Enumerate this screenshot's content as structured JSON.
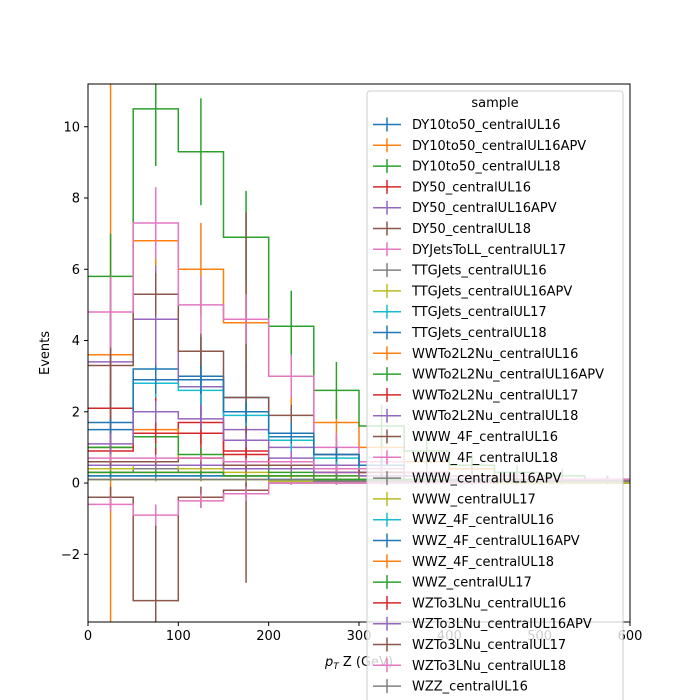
{
  "chart_data": {
    "type": "step",
    "title": "",
    "xlabel_main": "p",
    "xlabel_sub": "T",
    "xlabel_rest": " Z (GeV)",
    "ylabel": "Events",
    "xlim": [
      0,
      600
    ],
    "ylim": [
      -3.9,
      11.2
    ],
    "xticks": [
      "0",
      "100",
      "200",
      "300",
      "400",
      "500",
      "600"
    ],
    "yticks": [
      "−2",
      "0",
      "2",
      "4",
      "6",
      "8",
      "10"
    ],
    "ytick_values": [
      -2,
      0,
      2,
      4,
      6,
      8,
      10
    ],
    "xtick_values": [
      0,
      100,
      200,
      300,
      400,
      500,
      600
    ],
    "bin_edges": [
      0,
      50,
      100,
      150,
      200,
      250,
      300,
      350,
      400,
      450,
      500,
      550,
      600
    ],
    "legend_title": "sample",
    "legend_position": "upper-right",
    "series": [
      {
        "name": "DY10to50_centralUL16",
        "color": "#1f77b4",
        "values": [
          1.7,
          3.2,
          3.0,
          2.4,
          1.3,
          0.8,
          0.4,
          0.3,
          0.2,
          0.1,
          0.1,
          0.1
        ],
        "errors": [
          0.9,
          1.3,
          1.1,
          1.0,
          0.7,
          0.5,
          0.3,
          0.2,
          0.2,
          0.1,
          0.1,
          0.1
        ]
      },
      {
        "name": "DY10to50_centralUL16APV",
        "color": "#ff7f0e",
        "values": [
          3.6,
          6.8,
          6.0,
          4.5,
          3.0,
          1.7,
          1.0,
          0.6,
          0.4,
          0.2,
          0.1,
          0.1
        ],
        "errors": [
          7.6,
          1.5,
          1.3,
          1.1,
          0.8,
          0.6,
          0.4,
          0.3,
          0.2,
          0.2,
          0.1,
          0.1
        ]
      },
      {
        "name": "DY10to50_centralUL18",
        "color": "#2ca02c",
        "values": [
          5.8,
          10.5,
          9.3,
          6.9,
          4.4,
          2.6,
          1.6,
          0.9,
          0.5,
          0.3,
          0.2,
          0.1
        ],
        "errors": [
          1.2,
          1.6,
          1.5,
          1.3,
          1.0,
          0.8,
          0.6,
          0.4,
          0.3,
          0.2,
          0.2,
          0.1
        ]
      },
      {
        "name": "DY50_centralUL16",
        "color": "#d62728",
        "values": [
          2.1,
          1.4,
          1.7,
          0.9,
          0.6,
          0.4,
          0.3,
          0.2,
          0.1,
          0.1,
          0.1,
          0.1
        ],
        "errors": [
          1.5,
          1.0,
          1.0,
          0.6,
          0.4,
          0.3,
          0.2,
          0.2,
          0.1,
          0.1,
          0.1,
          0.1
        ]
      },
      {
        "name": "DY50_centralUL16APV",
        "color": "#9467bd",
        "values": [
          3.4,
          4.6,
          2.7,
          1.5,
          1.0,
          0.5,
          0.3,
          0.2,
          0.1,
          0.1,
          0.1,
          0.1
        ],
        "errors": [
          1.3,
          1.5,
          1.1,
          0.8,
          0.6,
          0.4,
          0.3,
          0.2,
          0.1,
          0.1,
          0.1,
          0.1
        ]
      },
      {
        "name": "DY50_centralUL18",
        "color": "#8c564b",
        "values": [
          3.3,
          5.3,
          3.7,
          2.4,
          1.9,
          0.8,
          0.5,
          0.3,
          0.2,
          0.1,
          0.1,
          0.1
        ],
        "errors": [
          1.6,
          0.6,
          0.5,
          5.2,
          0.3,
          0.3,
          0.2,
          0.2,
          0.1,
          0.1,
          0.1,
          0.1
        ]
      },
      {
        "name": "DYJetsToLL_centralUL17",
        "color": "#e377c2",
        "values": [
          4.8,
          7.3,
          5.0,
          4.6,
          3.0,
          1.0,
          0.6,
          0.3,
          0.2,
          0.2,
          0.1,
          0.1
        ],
        "errors": [
          1.0,
          1.0,
          0.8,
          0.7,
          0.6,
          0.4,
          0.3,
          0.2,
          0.2,
          0.1,
          0.1,
          0.1
        ]
      },
      {
        "name": "TTGJets_centralUL16",
        "color": "#7f7f7f",
        "values": [
          0.3,
          0.4,
          0.3,
          0.2,
          0.2,
          0.1,
          0.1,
          0.1,
          0.1,
          0.05,
          0.05,
          0.05
        ],
        "errors": [
          0.1,
          0.1,
          0.1,
          0.1,
          0.1,
          0.05,
          0.05,
          0.05,
          0.05,
          0.03,
          0.03,
          0.03
        ]
      },
      {
        "name": "TTGJets_centralUL16APV",
        "color": "#bcbd22",
        "values": [
          0.4,
          0.5,
          0.4,
          0.3,
          0.2,
          0.1,
          0.1,
          0.1,
          0.1,
          0.05,
          0.05,
          0.05
        ],
        "errors": [
          0.1,
          0.1,
          0.1,
          0.1,
          0.1,
          0.05,
          0.05,
          0.05,
          0.05,
          0.03,
          0.03,
          0.03
        ]
      },
      {
        "name": "TTGJets_centralUL17",
        "color": "#17becf",
        "values": [
          1.0,
          2.8,
          2.6,
          1.9,
          1.2,
          0.7,
          0.4,
          0.3,
          0.2,
          0.1,
          0.1,
          0.1
        ],
        "errors": [
          0.3,
          0.4,
          0.4,
          0.3,
          0.3,
          0.2,
          0.2,
          0.1,
          0.1,
          0.1,
          0.1,
          0.1
        ]
      },
      {
        "name": "TTGJets_centralUL18",
        "color": "#1f77b4",
        "values": [
          1.5,
          2.9,
          2.9,
          2.0,
          1.4,
          0.8,
          0.5,
          0.3,
          0.2,
          0.1,
          0.1,
          0.1
        ],
        "errors": [
          0.3,
          0.4,
          0.4,
          0.3,
          0.3,
          0.2,
          0.2,
          0.1,
          0.1,
          0.1,
          0.1,
          0.1
        ]
      },
      {
        "name": "WWTo2L2Nu_centralUL16",
        "color": "#ff7f0e",
        "values": [
          1.0,
          1.5,
          0.7,
          0.4,
          0.2,
          0.2,
          0.1,
          0.1,
          0.1,
          0.05,
          0.05,
          0.05
        ],
        "errors": [
          0.3,
          0.3,
          0.2,
          0.2,
          0.1,
          0.1,
          0.1,
          0.05,
          0.05,
          0.03,
          0.03,
          0.03
        ]
      },
      {
        "name": "WWTo2L2Nu_centralUL16APV",
        "color": "#2ca02c",
        "values": [
          1.0,
          1.3,
          0.8,
          0.5,
          0.3,
          0.2,
          0.1,
          0.1,
          0.1,
          0.05,
          0.05,
          0.05
        ],
        "errors": [
          0.3,
          0.3,
          0.2,
          0.2,
          0.1,
          0.1,
          0.1,
          0.05,
          0.05,
          0.03,
          0.03,
          0.03
        ]
      },
      {
        "name": "WWTo2L2Nu_centralUL17",
        "color": "#d62728",
        "values": [
          0.9,
          1.4,
          1.4,
          0.8,
          0.5,
          0.3,
          0.2,
          0.1,
          0.1,
          0.05,
          0.05,
          0.05
        ],
        "errors": [
          0.3,
          0.3,
          0.3,
          0.2,
          0.2,
          0.1,
          0.1,
          0.05,
          0.05,
          0.03,
          0.03,
          0.03
        ]
      },
      {
        "name": "WWTo2L2Nu_centralUL18",
        "color": "#9467bd",
        "values": [
          1.1,
          2.0,
          1.8,
          1.2,
          0.7,
          0.4,
          0.2,
          0.1,
          0.1,
          0.05,
          0.05,
          0.05
        ],
        "errors": [
          0.3,
          0.3,
          0.3,
          0.2,
          0.2,
          0.1,
          0.1,
          0.05,
          0.05,
          0.03,
          0.03,
          0.03
        ]
      },
      {
        "name": "WWW_4F_centralUL16",
        "color": "#8c564b",
        "values": [
          -0.4,
          -3.3,
          -0.4,
          -0.2,
          0.0,
          0.0,
          0.0,
          0.0,
          0.0,
          0.0,
          0.0,
          0.0
        ],
        "errors": [
          0.3,
          2.6,
          0.3,
          0.2,
          0.05,
          0.05,
          0.05,
          0.05,
          0.05,
          0.05,
          0.05,
          0.05
        ]
      },
      {
        "name": "WWW_4F_centralUL18",
        "color": "#e377c2",
        "values": [
          -0.6,
          -0.9,
          -0.5,
          -0.3,
          0.0,
          0.0,
          0.0,
          0.0,
          0.0,
          0.0,
          0.0,
          0.0
        ],
        "errors": [
          0.2,
          0.3,
          0.2,
          0.2,
          0.05,
          0.05,
          0.05,
          0.05,
          0.05,
          0.05,
          0.05,
          0.05
        ]
      },
      {
        "name": "WWW_centralUL16APV",
        "color": "#7f7f7f",
        "values": [
          0.1,
          0.1,
          0.1,
          0.1,
          0.05,
          0.05,
          0.05,
          0.05,
          0.05,
          0.0,
          0.0,
          0.0
        ],
        "errors": [
          0.05,
          0.05,
          0.05,
          0.05,
          0.03,
          0.03,
          0.03,
          0.03,
          0.03,
          0.02,
          0.02,
          0.02
        ]
      },
      {
        "name": "WWW_centralUL17",
        "color": "#bcbd22",
        "values": [
          0.1,
          0.1,
          0.1,
          0.1,
          0.05,
          0.05,
          0.05,
          0.05,
          0.05,
          0.0,
          0.0,
          0.0
        ],
        "errors": [
          0.05,
          0.05,
          0.05,
          0.05,
          0.03,
          0.03,
          0.03,
          0.03,
          0.03,
          0.02,
          0.02,
          0.02
        ]
      },
      {
        "name": "WWZ_4F_centralUL16",
        "color": "#17becf",
        "values": [
          0.2,
          0.2,
          0.2,
          0.2,
          0.1,
          0.1,
          0.1,
          0.05,
          0.05,
          0.05,
          0.05,
          0.05
        ],
        "errors": [
          0.05,
          0.05,
          0.05,
          0.05,
          0.03,
          0.03,
          0.03,
          0.02,
          0.02,
          0.02,
          0.02,
          0.02
        ]
      },
      {
        "name": "WWZ_4F_centralUL16APV",
        "color": "#1f77b4",
        "values": [
          0.2,
          0.2,
          0.2,
          0.2,
          0.1,
          0.1,
          0.1,
          0.05,
          0.05,
          0.05,
          0.05,
          0.05
        ],
        "errors": [
          0.05,
          0.05,
          0.05,
          0.05,
          0.03,
          0.03,
          0.03,
          0.02,
          0.02,
          0.02,
          0.02,
          0.02
        ]
      },
      {
        "name": "WWZ_4F_centralUL18",
        "color": "#ff7f0e",
        "values": [
          0.3,
          0.3,
          0.3,
          0.2,
          0.2,
          0.1,
          0.1,
          0.1,
          0.05,
          0.05,
          0.05,
          0.05
        ],
        "errors": [
          0.05,
          0.05,
          0.05,
          0.05,
          0.03,
          0.03,
          0.03,
          0.02,
          0.02,
          0.02,
          0.02,
          0.02
        ]
      },
      {
        "name": "WWZ_centralUL17",
        "color": "#2ca02c",
        "values": [
          0.3,
          0.3,
          0.3,
          0.2,
          0.2,
          0.1,
          0.1,
          0.1,
          0.05,
          0.05,
          0.05,
          0.05
        ],
        "errors": [
          0.05,
          0.05,
          0.05,
          0.05,
          0.03,
          0.03,
          0.03,
          0.02,
          0.02,
          0.02,
          0.02,
          0.02
        ]
      },
      {
        "name": "WZTo3LNu_centralUL16",
        "color": "#d62728",
        "values": [
          0.5,
          0.5,
          0.5,
          0.5,
          0.5,
          0.3,
          0.3,
          0.2,
          0.2,
          0.1,
          0.1,
          0.1
        ],
        "errors": [
          0.1,
          0.1,
          0.1,
          0.1,
          0.1,
          0.1,
          0.1,
          0.1,
          0.05,
          0.05,
          0.05,
          0.05
        ]
      },
      {
        "name": "WZTo3LNu_centralUL16APV",
        "color": "#9467bd",
        "values": [
          0.5,
          0.5,
          0.5,
          0.4,
          0.4,
          0.3,
          0.3,
          0.2,
          0.2,
          0.1,
          0.1,
          0.1
        ],
        "errors": [
          0.1,
          0.1,
          0.1,
          0.1,
          0.1,
          0.1,
          0.1,
          0.1,
          0.05,
          0.05,
          0.05,
          0.05
        ]
      },
      {
        "name": "WZTo3LNu_centralUL17",
        "color": "#8c564b",
        "values": [
          0.6,
          0.6,
          0.7,
          0.5,
          0.5,
          0.4,
          0.3,
          0.3,
          0.2,
          0.1,
          0.1,
          0.1
        ],
        "errors": [
          0.1,
          0.1,
          0.1,
          0.1,
          0.1,
          0.1,
          0.1,
          0.1,
          0.05,
          0.05,
          0.05,
          0.05
        ]
      },
      {
        "name": "WZTo3LNu_centralUL18",
        "color": "#e377c2",
        "values": [
          0.7,
          0.7,
          0.7,
          0.6,
          0.6,
          0.4,
          0.4,
          0.3,
          0.2,
          0.2,
          0.1,
          0.1
        ],
        "errors": [
          0.1,
          0.1,
          0.1,
          0.1,
          0.1,
          0.1,
          0.1,
          0.1,
          0.05,
          0.05,
          0.05,
          0.05
        ]
      },
      {
        "name": "WZZ_centralUL16",
        "color": "#7f7f7f",
        "values": [
          0.1,
          0.1,
          0.1,
          0.1,
          0.1,
          0.05,
          0.05,
          0.05,
          0.05,
          0.05,
          0.05,
          0.05
        ],
        "errors": [
          0.03,
          0.03,
          0.03,
          0.03,
          0.03,
          0.02,
          0.02,
          0.02,
          0.02,
          0.02,
          0.02,
          0.02
        ]
      }
    ]
  }
}
